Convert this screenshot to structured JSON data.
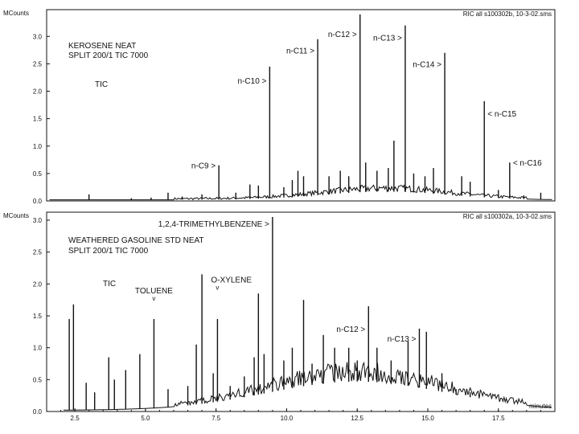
{
  "chart_data": [
    {
      "type": "line",
      "header_left": "MCounts",
      "header_right": "RIC all s100302b,   10-3-02.sms",
      "title": "KEROSENE   NEAT",
      "subtitle": "SPLIT 200/1 TIC 7000",
      "trace_label": "TIC",
      "xlim": [
        1.5,
        19.5
      ],
      "ylim": [
        0,
        3.4
      ],
      "y_ticks": [
        "0.0",
        "0.5",
        "1.0",
        "1.5",
        "2.0",
        "2.5",
        "3.0"
      ],
      "y_tick_values": [
        0,
        0.5,
        1.0,
        1.5,
        2.0,
        2.5,
        3.0
      ],
      "baseline": 0.02,
      "hump": {
        "center": 13.5,
        "width": 3.2,
        "height": 0.15
      },
      "peaks": [
        {
          "x": 3.0,
          "y": 0.12
        },
        {
          "x": 4.5,
          "y": 0.05
        },
        {
          "x": 5.2,
          "y": 0.06
        },
        {
          "x": 5.8,
          "y": 0.15
        },
        {
          "x": 6.3,
          "y": 0.08
        },
        {
          "x": 7.0,
          "y": 0.12
        },
        {
          "x": 7.6,
          "y": 0.65
        },
        {
          "x": 8.2,
          "y": 0.15
        },
        {
          "x": 8.7,
          "y": 0.3
        },
        {
          "x": 9.0,
          "y": 0.28
        },
        {
          "x": 9.4,
          "y": 2.45
        },
        {
          "x": 9.9,
          "y": 0.25
        },
        {
          "x": 10.2,
          "y": 0.38
        },
        {
          "x": 10.4,
          "y": 0.55
        },
        {
          "x": 10.6,
          "y": 0.45
        },
        {
          "x": 11.1,
          "y": 2.95
        },
        {
          "x": 11.5,
          "y": 0.45
        },
        {
          "x": 11.9,
          "y": 0.55
        },
        {
          "x": 12.2,
          "y": 0.45
        },
        {
          "x": 12.6,
          "y": 3.4
        },
        {
          "x": 12.8,
          "y": 0.7
        },
        {
          "x": 13.2,
          "y": 0.55
        },
        {
          "x": 13.6,
          "y": 0.6
        },
        {
          "x": 13.8,
          "y": 1.1
        },
        {
          "x": 14.2,
          "y": 3.2
        },
        {
          "x": 14.5,
          "y": 0.5
        },
        {
          "x": 14.9,
          "y": 0.45
        },
        {
          "x": 15.2,
          "y": 0.6
        },
        {
          "x": 15.6,
          "y": 2.7
        },
        {
          "x": 16.2,
          "y": 0.45
        },
        {
          "x": 16.5,
          "y": 0.35
        },
        {
          "x": 17.0,
          "y": 1.82
        },
        {
          "x": 17.5,
          "y": 0.2
        },
        {
          "x": 17.9,
          "y": 0.7
        },
        {
          "x": 18.4,
          "y": 0.1
        },
        {
          "x": 19.0,
          "y": 0.15
        }
      ],
      "annotations": [
        {
          "text": "n-C9 >",
          "x": 7.6,
          "y": 0.65,
          "anchor": "end"
        },
        {
          "text": "n-C10 >",
          "x": 9.4,
          "y": 2.2,
          "anchor": "end"
        },
        {
          "text": "n-C11 >",
          "x": 11.1,
          "y": 2.75,
          "anchor": "end"
        },
        {
          "text": "n-C12 >",
          "x": 12.6,
          "y": 3.05,
          "anchor": "end"
        },
        {
          "text": "n-C13 >",
          "x": 14.2,
          "y": 2.98,
          "anchor": "end"
        },
        {
          "text": "n-C14 >",
          "x": 15.6,
          "y": 2.5,
          "anchor": "end"
        },
        {
          "text": "< n-C15",
          "x": 17.0,
          "y": 1.6,
          "anchor": "start"
        },
        {
          "text": "< n-C16",
          "x": 17.9,
          "y": 0.7,
          "anchor": "start"
        }
      ]
    },
    {
      "type": "line",
      "header_left": "MCounts",
      "header_right": "RIC all s100302a,   10-3-02.sms",
      "title": "WEATHERED GASOLINE STD  NEAT",
      "subtitle": "SPLIT 200/1 TIC 7000",
      "trace_label": "TIC",
      "xlabel": "minutes",
      "xlim": [
        1.5,
        19.5
      ],
      "ylim": [
        0,
        3.05
      ],
      "y_ticks": [
        "0.0",
        "0.5",
        "1.0",
        "1.5",
        "2.0",
        "2.5",
        "3.0"
      ],
      "y_tick_values": [
        0,
        0.5,
        1.0,
        1.5,
        2.0,
        2.5,
        3.0
      ],
      "x_ticks": [
        "2.5",
        "5.0",
        "7.5",
        "10.0",
        "12.5",
        "15.0",
        "17.5"
      ],
      "x_tick_values": [
        2.5,
        5.0,
        7.5,
        10.0,
        12.5,
        15.0,
        17.5
      ],
      "baseline": 0.02,
      "hump": {
        "center": 12.5,
        "width": 4.5,
        "height": 0.45
      },
      "peaks": [
        {
          "x": 2.3,
          "y": 1.45
        },
        {
          "x": 2.45,
          "y": 1.68
        },
        {
          "x": 2.9,
          "y": 0.45
        },
        {
          "x": 3.2,
          "y": 0.3
        },
        {
          "x": 3.7,
          "y": 0.85
        },
        {
          "x": 3.9,
          "y": 0.5
        },
        {
          "x": 4.3,
          "y": 0.65
        },
        {
          "x": 4.8,
          "y": 0.9
        },
        {
          "x": 5.3,
          "y": 1.45
        },
        {
          "x": 5.8,
          "y": 0.35
        },
        {
          "x": 6.5,
          "y": 0.4
        },
        {
          "x": 6.8,
          "y": 1.05
        },
        {
          "x": 7.0,
          "y": 2.15
        },
        {
          "x": 7.4,
          "y": 0.6
        },
        {
          "x": 7.55,
          "y": 1.45
        },
        {
          "x": 8.0,
          "y": 0.4
        },
        {
          "x": 8.5,
          "y": 0.55
        },
        {
          "x": 8.85,
          "y": 0.85
        },
        {
          "x": 9.0,
          "y": 1.85
        },
        {
          "x": 9.2,
          "y": 0.9
        },
        {
          "x": 9.5,
          "y": 3.05
        },
        {
          "x": 9.9,
          "y": 0.8
        },
        {
          "x": 10.2,
          "y": 1.0
        },
        {
          "x": 10.6,
          "y": 1.75
        },
        {
          "x": 10.9,
          "y": 0.75
        },
        {
          "x": 11.3,
          "y": 1.2
        },
        {
          "x": 11.7,
          "y": 1.0
        },
        {
          "x": 12.2,
          "y": 1.0
        },
        {
          "x": 12.5,
          "y": 0.8
        },
        {
          "x": 12.9,
          "y": 1.65
        },
        {
          "x": 13.2,
          "y": 1.0
        },
        {
          "x": 13.7,
          "y": 0.8
        },
        {
          "x": 14.3,
          "y": 1.1
        },
        {
          "x": 14.7,
          "y": 1.3
        },
        {
          "x": 14.95,
          "y": 1.25
        },
        {
          "x": 15.5,
          "y": 0.6
        },
        {
          "x": 16.0,
          "y": 0.35
        },
        {
          "x": 16.5,
          "y": 0.3
        }
      ],
      "annotations": [
        {
          "text": "1,2,4-TRIMETHYLBENZENE >",
          "x": 9.5,
          "y": 2.95,
          "anchor": "end"
        },
        {
          "text": "TOLUENE",
          "x": 5.3,
          "y": 1.8,
          "anchor": "middle"
        },
        {
          "text": "O-XYLENE",
          "x": 7.55,
          "y": 1.95,
          "anchor": "start-left"
        },
        {
          "text": "n-C12 >",
          "x": 12.9,
          "y": 1.3,
          "anchor": "end"
        },
        {
          "text": "n-C13 >",
          "x": 14.7,
          "y": 1.15,
          "anchor": "end"
        }
      ]
    }
  ]
}
